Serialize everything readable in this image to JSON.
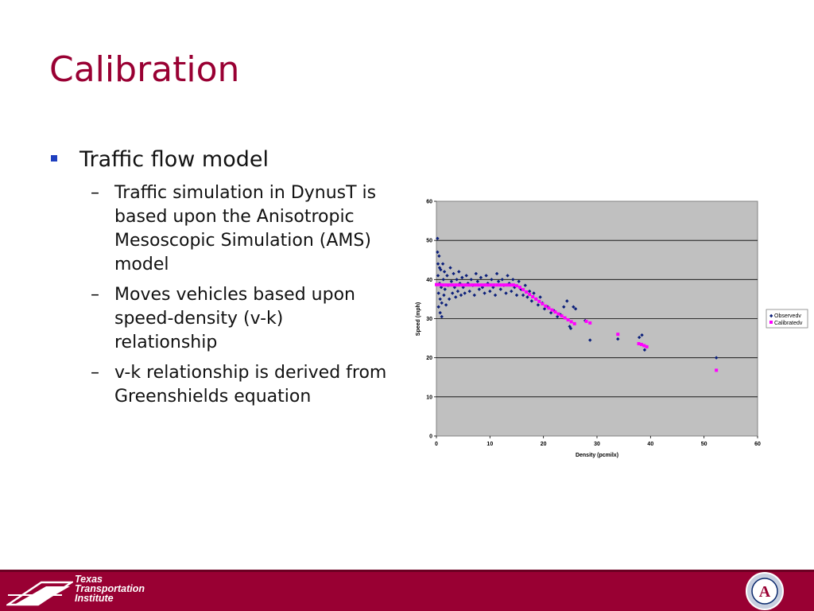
{
  "slide": {
    "title": "Calibration",
    "bullet": "Traffic flow model",
    "sub_bullets": [
      "Traffic simulation in DynusT is based upon the Anisotropic  Mesoscopic Simulation (AMS) model",
      "Moves vehicles based upon speed-density (v-k) relationship",
      "v-k relationship is derived from Greenshields equation"
    ],
    "sub_marker": "–"
  },
  "footer": {
    "logo_lines": [
      "Texas",
      "Transportation",
      "Institute"
    ],
    "seal_name": "university-seal-logo",
    "colors": {
      "bar": "#990033",
      "title": "#990033"
    }
  },
  "chart_data": {
    "type": "scatter",
    "title": "",
    "xlabel": "Density (pcmilx)",
    "ylabel": "Speed (mph)",
    "xlim": [
      0,
      60
    ],
    "ylim": [
      0,
      60
    ],
    "xticks": [
      0,
      10,
      20,
      30,
      40,
      50,
      60
    ],
    "yticks": [
      0,
      10,
      20,
      30,
      40,
      50,
      60
    ],
    "grid": true,
    "legend_position": "right",
    "series": [
      {
        "name": "Observedv",
        "color": "#0b1f7a",
        "marker": "diamond",
        "points": [
          [
            0.2,
            50.5
          ],
          [
            0.2,
            47
          ],
          [
            0.3,
            44
          ],
          [
            0.3,
            41
          ],
          [
            0.4,
            36.5
          ],
          [
            0.4,
            33
          ],
          [
            0.5,
            46
          ],
          [
            0.6,
            43
          ],
          [
            0.6,
            39
          ],
          [
            0.7,
            35
          ],
          [
            0.7,
            31.5
          ],
          [
            0.8,
            42.5
          ],
          [
            0.9,
            38
          ],
          [
            1,
            34
          ],
          [
            1,
            30.5
          ],
          [
            1.2,
            44
          ],
          [
            1.3,
            40
          ],
          [
            1.4,
            36
          ],
          [
            1.5,
            42
          ],
          [
            1.6,
            37.5
          ],
          [
            1.8,
            33.5
          ],
          [
            2,
            41
          ],
          [
            2.2,
            38.5
          ],
          [
            2.4,
            35
          ],
          [
            2.6,
            43
          ],
          [
            2.8,
            39.5
          ],
          [
            3,
            36.5
          ],
          [
            3.2,
            41.5
          ],
          [
            3.4,
            38
          ],
          [
            3.6,
            35.5
          ],
          [
            3.8,
            40
          ],
          [
            4,
            37
          ],
          [
            4.2,
            42
          ],
          [
            4.4,
            39
          ],
          [
            4.6,
            36
          ],
          [
            4.8,
            40.5
          ],
          [
            5,
            38
          ],
          [
            5.3,
            36.5
          ],
          [
            5.6,
            41
          ],
          [
            5.9,
            39
          ],
          [
            6.2,
            37
          ],
          [
            6.5,
            40
          ],
          [
            6.8,
            38.5
          ],
          [
            7.1,
            36
          ],
          [
            7.4,
            41.5
          ],
          [
            7.7,
            39.5
          ],
          [
            8,
            37.5
          ],
          [
            8.3,
            40.5
          ],
          [
            8.6,
            38
          ],
          [
            9,
            36.5
          ],
          [
            9.3,
            41
          ],
          [
            9.6,
            39
          ],
          [
            10,
            37
          ],
          [
            10.3,
            40
          ],
          [
            10.6,
            38
          ],
          [
            11,
            36
          ],
          [
            11.3,
            41.5
          ],
          [
            11.6,
            39.5
          ],
          [
            12,
            37.5
          ],
          [
            12.3,
            40
          ],
          [
            12.6,
            38.5
          ],
          [
            13,
            36.5
          ],
          [
            13.3,
            41
          ],
          [
            13.6,
            39
          ],
          [
            14,
            37
          ],
          [
            14.3,
            40
          ],
          [
            14.6,
            38
          ],
          [
            15,
            36
          ],
          [
            15.4,
            39.5
          ],
          [
            15.8,
            37.5
          ],
          [
            16.2,
            36
          ],
          [
            16.6,
            38.5
          ],
          [
            17,
            35.5
          ],
          [
            17.4,
            37
          ],
          [
            17.8,
            34.5
          ],
          [
            18.2,
            36.5
          ],
          [
            18.6,
            35
          ],
          [
            19,
            33.5
          ],
          [
            19.4,
            35.5
          ],
          [
            19.8,
            34
          ],
          [
            20.2,
            32.5
          ],
          [
            20.8,
            33
          ],
          [
            21.4,
            31.5
          ],
          [
            22,
            32
          ],
          [
            22.6,
            30.5
          ],
          [
            23.2,
            31
          ],
          [
            23.8,
            33
          ],
          [
            24.4,
            34.5
          ],
          [
            24.9,
            28
          ],
          [
            25.1,
            27.5
          ],
          [
            25.6,
            33
          ],
          [
            26,
            32.5
          ],
          [
            27.8,
            29.5
          ],
          [
            28.7,
            24.5
          ],
          [
            33.9,
            24.8
          ],
          [
            37.9,
            25.2
          ],
          [
            38.4,
            25.8
          ],
          [
            38.9,
            22
          ],
          [
            39.3,
            22.8
          ],
          [
            52.3,
            20
          ]
        ]
      },
      {
        "name": "Calibratedv",
        "color": "#ff00ff",
        "marker": "square",
        "points": [
          [
            0,
            38.7
          ],
          [
            0.6,
            38.7
          ],
          [
            1.2,
            38.6
          ],
          [
            1.8,
            38.6
          ],
          [
            2.4,
            38.6
          ],
          [
            3,
            38.6
          ],
          [
            3.6,
            38.6
          ],
          [
            4.2,
            38.6
          ],
          [
            4.8,
            38.6
          ],
          [
            5.4,
            38.6
          ],
          [
            6,
            38.6
          ],
          [
            6.6,
            38.6
          ],
          [
            7.2,
            38.6
          ],
          [
            7.8,
            38.6
          ],
          [
            8.4,
            38.6
          ],
          [
            9,
            38.6
          ],
          [
            9.6,
            38.6
          ],
          [
            10.2,
            38.6
          ],
          [
            10.8,
            38.6
          ],
          [
            11.4,
            38.6
          ],
          [
            12,
            38.6
          ],
          [
            12.6,
            38.6
          ],
          [
            13.2,
            38.6
          ],
          [
            13.8,
            38.6
          ],
          [
            14.4,
            38.6
          ],
          [
            15,
            38.4
          ],
          [
            15.6,
            38
          ],
          [
            16.2,
            37.4
          ],
          [
            16.8,
            36.8
          ],
          [
            17.4,
            36.2
          ],
          [
            18,
            35.6
          ],
          [
            18.6,
            35
          ],
          [
            19.2,
            34.4
          ],
          [
            19.8,
            33.8
          ],
          [
            20.4,
            33.2
          ],
          [
            21,
            32.7
          ],
          [
            21.6,
            32.2
          ],
          [
            22.2,
            31.7
          ],
          [
            22.8,
            31.2
          ],
          [
            23.4,
            30.7
          ],
          [
            24,
            30.2
          ],
          [
            24.6,
            29.7
          ],
          [
            25.2,
            29.2
          ],
          [
            25.8,
            28.7
          ],
          [
            28,
            29.3
          ],
          [
            28.7,
            28.9
          ],
          [
            33.9,
            26
          ],
          [
            37.8,
            23.6
          ],
          [
            38.3,
            23.4
          ],
          [
            38.8,
            23.1
          ],
          [
            39.3,
            22.8
          ],
          [
            52.3,
            16.8
          ]
        ]
      }
    ]
  }
}
